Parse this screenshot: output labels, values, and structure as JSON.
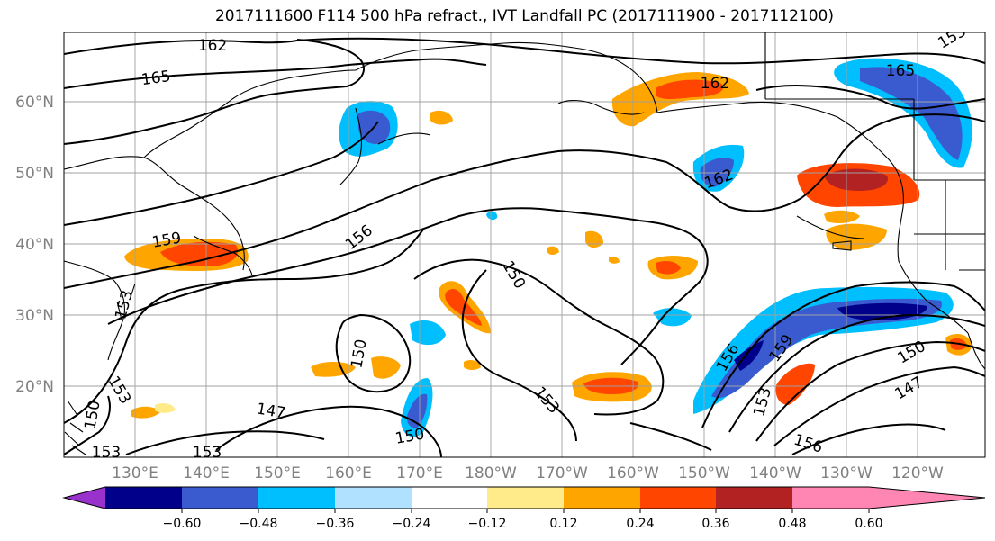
{
  "title": "2017111600 F114 500 hPa refract., IVT Landfall PC (2017111900 - 2017112100)",
  "lat_labels": [
    "60°N",
    "50°N",
    "40°N",
    "30°N",
    "20°N"
  ],
  "lon_labels": [
    "130°E",
    "140°E",
    "150°E",
    "160°E",
    "170°E",
    "180°W",
    "170°W",
    "160°W",
    "150°W",
    "140°W",
    "130°W",
    "120°W"
  ],
  "contour_labels": [
    "162",
    "165",
    "162",
    "165",
    "162",
    "159",
    "156",
    "153",
    "150",
    "150",
    "153",
    "156",
    "159",
    "153",
    "150",
    "147",
    "147",
    "150",
    "156",
    "153",
    "153",
    "150",
    "153",
    "153"
  ],
  "colorbar": {
    "ticks": [
      "−0.60",
      "−0.48",
      "−0.36",
      "−0.24",
      "−0.12",
      "0.12",
      "0.24",
      "0.36",
      "0.48",
      "0.60"
    ],
    "colors": [
      "#9932cc",
      "#00008b",
      "#3a5bcf",
      "#00bfff",
      "#b0e2ff",
      "#ffffff",
      "#ffeb8a",
      "#ffa500",
      "#ff4500",
      "#b22222",
      "#ff85b3"
    ]
  },
  "colors": {
    "lat_lon_label": "#808080",
    "grid": "#a0a0a0"
  }
}
